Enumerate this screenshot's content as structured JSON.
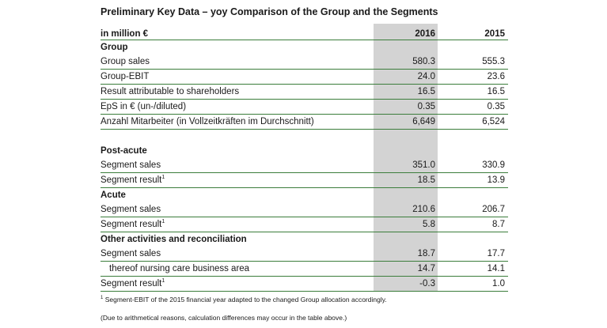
{
  "title": "Preliminary Key Data – yoy Comparison of the Group and the Segments",
  "header": {
    "label": "in million €",
    "col1": "2016",
    "col2": "2015"
  },
  "rows": [
    {
      "kind": "sec",
      "label": "Group",
      "v2016": "",
      "v2015": ""
    },
    {
      "kind": "line",
      "label": "Group sales",
      "v2016": "580.3",
      "v2015": "555.3"
    },
    {
      "kind": "line",
      "label": "Group-EBIT",
      "v2016": "24.0",
      "v2015": "23.6"
    },
    {
      "kind": "line",
      "label": "Result attributable to shareholders",
      "v2016": "16.5",
      "v2015": "16.5"
    },
    {
      "kind": "line",
      "label": "EpS in € (un-/diluted)",
      "v2016": "0.35",
      "v2015": "0.35"
    },
    {
      "kind": "line",
      "label": "Anzahl Mitarbeiter (in Vollzeitkräften im Durchschnitt)",
      "v2016": "6,649",
      "v2015": "6,524"
    },
    {
      "kind": "gap"
    },
    {
      "kind": "sec",
      "label": "Post-acute",
      "v2016": "",
      "v2015": ""
    },
    {
      "kind": "line",
      "label": "Segment sales",
      "v2016": "351.0",
      "v2015": "330.9"
    },
    {
      "kind": "line",
      "label": "Segment result",
      "sup": "1",
      "v2016": "18.5",
      "v2015": "13.9"
    },
    {
      "kind": "sec",
      "label": "Acute",
      "v2016": "",
      "v2015": ""
    },
    {
      "kind": "line",
      "label": "Segment sales",
      "v2016": "210.6",
      "v2015": "206.7"
    },
    {
      "kind": "line",
      "label": "Segment result",
      "sup": "1",
      "v2016": "5.8",
      "v2015": "8.7"
    },
    {
      "kind": "sec",
      "label": "Other activities and reconciliation",
      "v2016": "",
      "v2015": ""
    },
    {
      "kind": "line",
      "label": "Segment sales",
      "v2016": "18.7",
      "v2015": "17.7"
    },
    {
      "kind": "line indent",
      "label": "thereof nursing care business area",
      "v2016": "14.7",
      "v2015": "14.1"
    },
    {
      "kind": "line",
      "label": "Segment result",
      "sup": "1",
      "v2016": "-0.3",
      "v2015": "1.0"
    }
  ],
  "footnote1": {
    "marker": "1",
    "text": "Segment-EBIT of the 2015 financial year adapted to the changed Group allocation accordingly."
  },
  "footnote2": "(Due to arithmetical reasons, calculation differences may occur in the table above.)",
  "colors": {
    "rule": "#3b7d3b",
    "shade": "#d3d3d3"
  }
}
